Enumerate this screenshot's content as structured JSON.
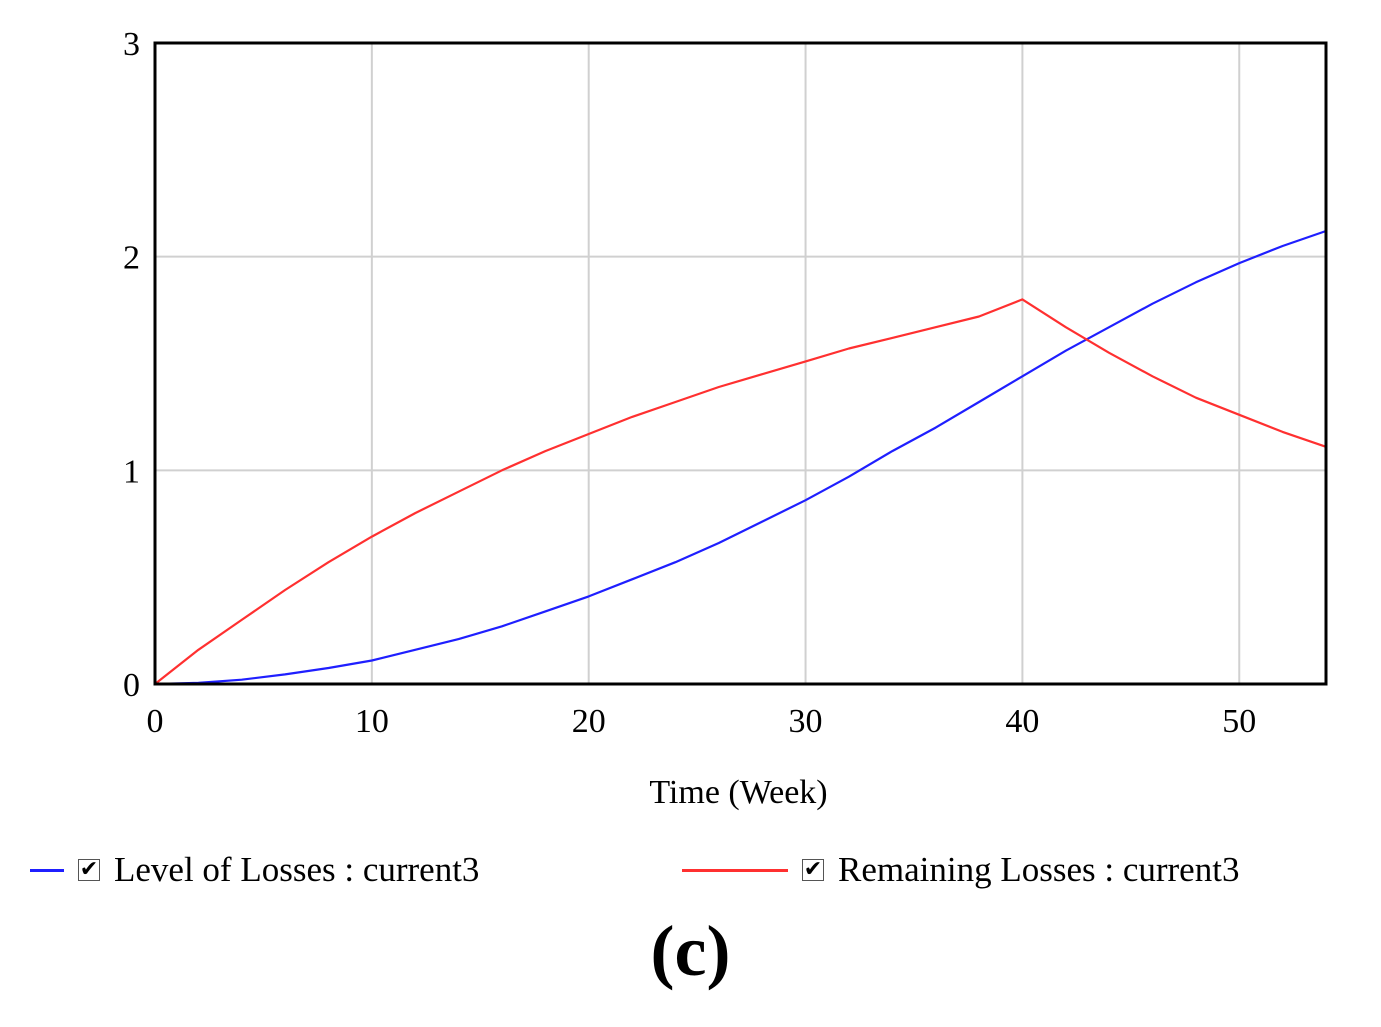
{
  "chart_data": {
    "type": "line",
    "xlabel": "Time (Week)",
    "ylabel": "",
    "xlim": [
      0,
      54
    ],
    "ylim": [
      0,
      3
    ],
    "xticks": [
      "0",
      "10",
      "20",
      "30",
      "40",
      "50"
    ],
    "yticks": [
      "0",
      "1",
      "2",
      "3"
    ],
    "grid": true,
    "legend_position": "bottom",
    "series": [
      {
        "name": "Level of Losses : current3",
        "color": "#1f1fff",
        "x": [
          0,
          2,
          4,
          6,
          8,
          10,
          12,
          14,
          16,
          18,
          20,
          22,
          24,
          26,
          28,
          30,
          32,
          34,
          36,
          38,
          40,
          42,
          44,
          46,
          48,
          50,
          52,
          54
        ],
        "y": [
          0,
          0.005,
          0.02,
          0.045,
          0.075,
          0.11,
          0.16,
          0.21,
          0.27,
          0.34,
          0.41,
          0.49,
          0.57,
          0.66,
          0.76,
          0.86,
          0.97,
          1.09,
          1.2,
          1.32,
          1.44,
          1.56,
          1.67,
          1.78,
          1.88,
          1.97,
          2.05,
          2.12
        ]
      },
      {
        "name": "Remaining Losses : current3",
        "color": "#ff3030",
        "x": [
          0,
          2,
          4,
          6,
          8,
          10,
          12,
          14,
          16,
          18,
          20,
          22,
          24,
          26,
          28,
          30,
          32,
          34,
          36,
          38,
          40,
          42,
          44,
          46,
          48,
          50,
          52,
          54
        ],
        "y": [
          0,
          0.16,
          0.3,
          0.44,
          0.57,
          0.69,
          0.8,
          0.9,
          1.0,
          1.09,
          1.17,
          1.25,
          1.32,
          1.39,
          1.45,
          1.51,
          1.57,
          1.62,
          1.67,
          1.72,
          1.8,
          1.67,
          1.55,
          1.44,
          1.34,
          1.26,
          1.18,
          1.11
        ]
      }
    ]
  },
  "legend": {
    "item1": {
      "label": "Level of Losses : current3",
      "checked": "✔"
    },
    "item2": {
      "label": "Remaining Losses : current3",
      "checked": "✔"
    }
  },
  "panel_label": "(c)"
}
